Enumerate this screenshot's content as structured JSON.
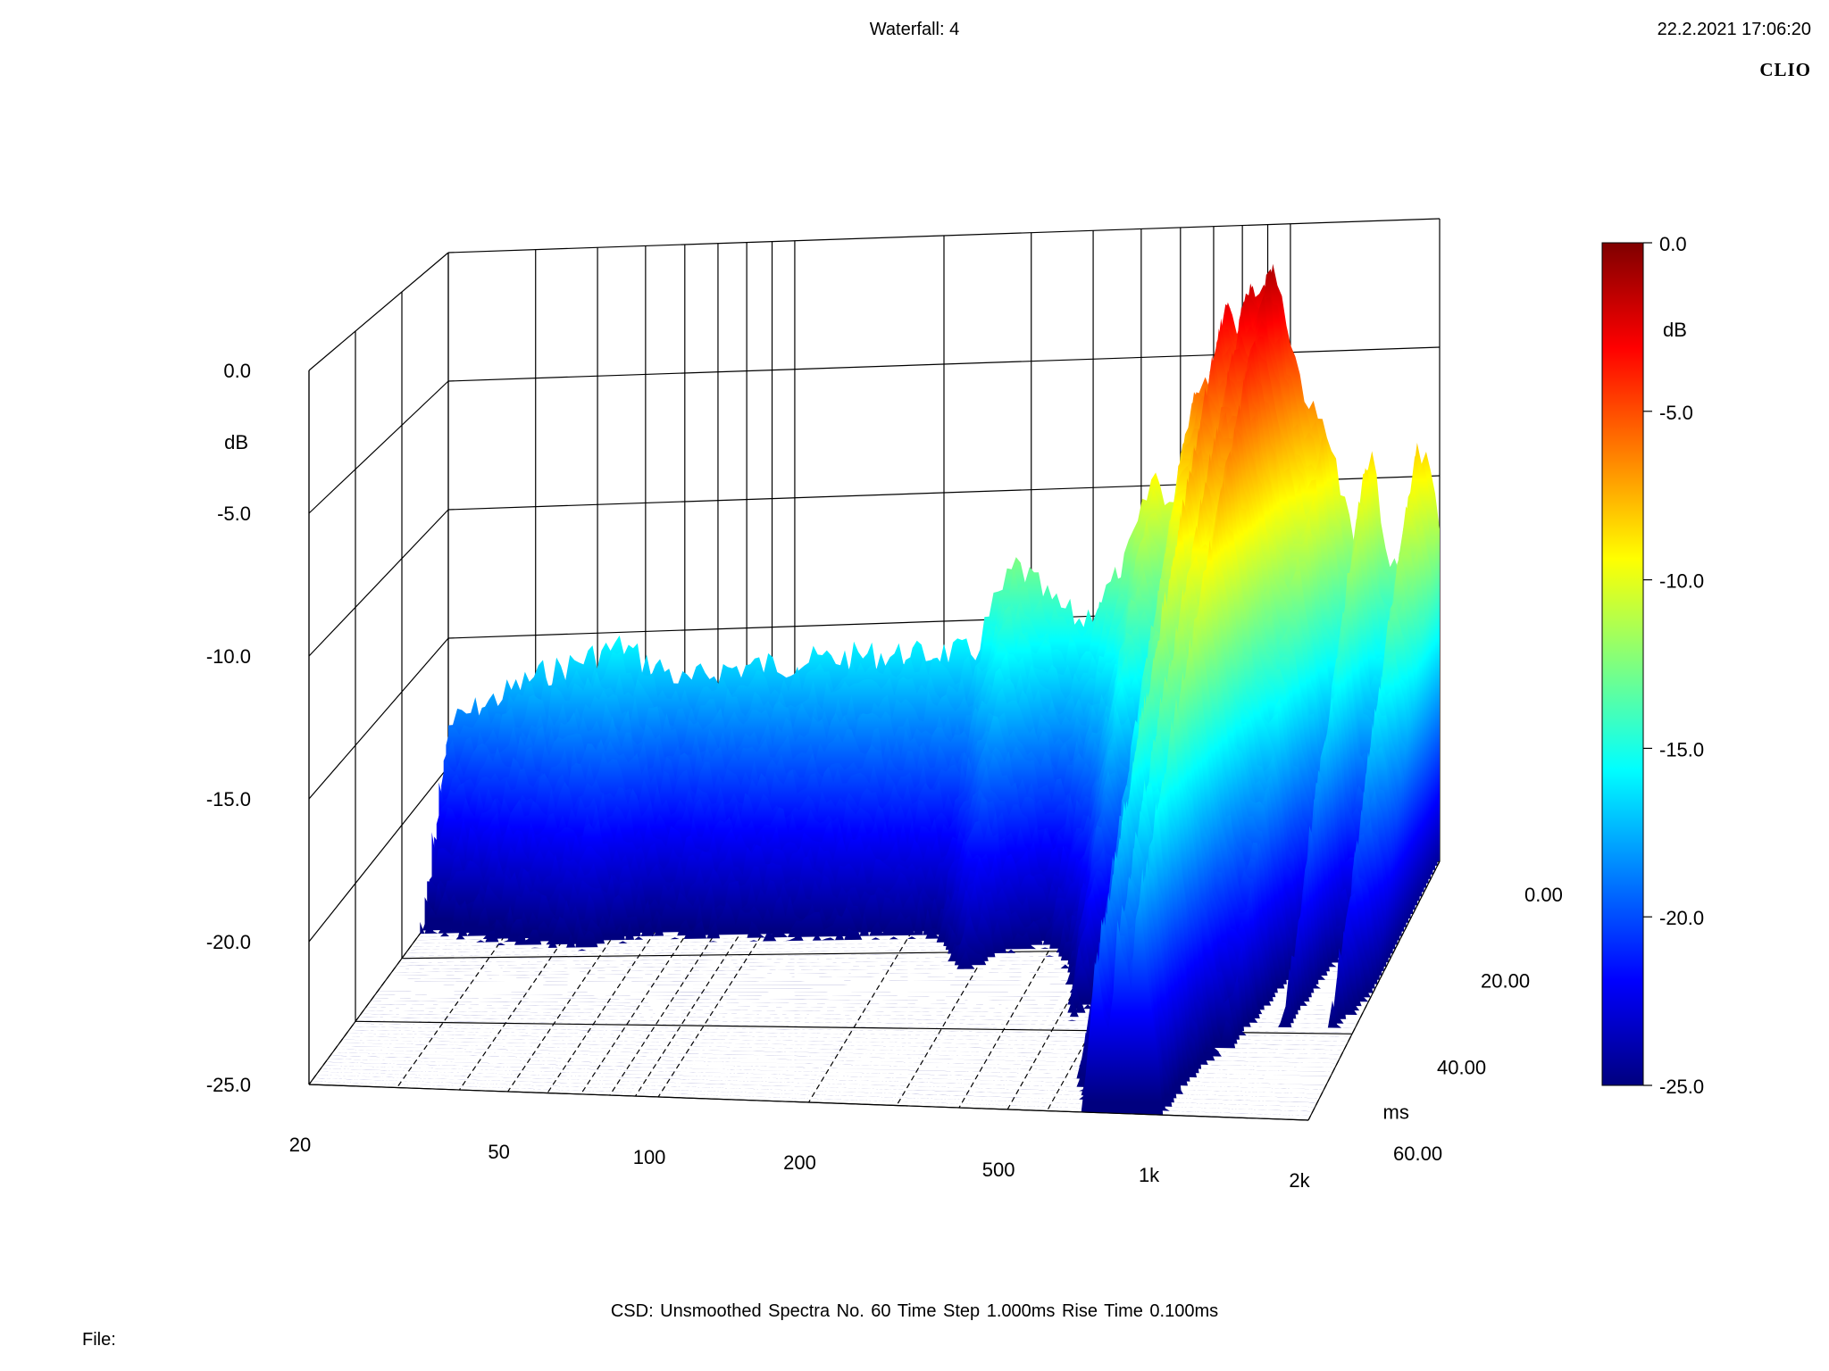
{
  "header": {
    "title": "Waterfall: 4",
    "timestamp": "22.2.2021 17:06:20",
    "brand": "CLIO"
  },
  "footer": {
    "settings": "CSD:   Unsmoothed   Spectra No. 60   Time Step 1.000ms   Rise Time 0.100ms",
    "file_label": "File:"
  },
  "colors": {
    "scale": [
      "#00007f",
      "#0000ff",
      "#007fff",
      "#00ffff",
      "#7fff7f",
      "#ffff00",
      "#ff7f00",
      "#ff0000",
      "#7f0000"
    ],
    "grid": "#000000"
  },
  "chart_data": {
    "type": "waterfall",
    "title": "Waterfall: 4",
    "frequency_axis": {
      "scale": "log",
      "range": [
        20,
        2000
      ],
      "ticks": [
        {
          "value": 20,
          "label": "20"
        },
        {
          "value": 50,
          "label": "50"
        },
        {
          "value": 100,
          "label": "100"
        },
        {
          "value": 200,
          "label": "200"
        },
        {
          "value": 500,
          "label": "500"
        },
        {
          "value": 1000,
          "label": "1k"
        },
        {
          "value": 2000,
          "label": "2k"
        }
      ]
    },
    "level_axis": {
      "unit": "dB",
      "range": [
        -25,
        0
      ],
      "ticks": [
        {
          "value": 0,
          "label": "0.0"
        },
        {
          "value": -5,
          "label": "-5.0"
        },
        {
          "value": -10,
          "label": "-10.0"
        },
        {
          "value": -15,
          "label": "-15.0"
        },
        {
          "value": -20,
          "label": "-20.0"
        },
        {
          "value": -25,
          "label": "-25.0"
        }
      ]
    },
    "time_axis": {
      "unit": "ms",
      "range": [
        0,
        60
      ],
      "ticks": [
        {
          "value": 0,
          "label": "0.00"
        },
        {
          "value": 20,
          "label": "20.00"
        },
        {
          "value": 40,
          "label": "40.00"
        },
        {
          "value": 60,
          "label": "60.00"
        }
      ]
    },
    "colorbar": {
      "unit": "dB",
      "range": [
        -25,
        0
      ],
      "ticks": [
        {
          "value": 0,
          "label": "0.0"
        },
        {
          "value": -5,
          "label": "-5.0"
        },
        {
          "value": -10,
          "label": "-10.0"
        },
        {
          "value": -15,
          "label": "-15.0"
        },
        {
          "value": -20,
          "label": "-20.0"
        },
        {
          "value": -25,
          "label": "-25.0"
        }
      ]
    },
    "front_spectrum_db": [
      [
        20,
        -17.8
      ],
      [
        25,
        -16.8
      ],
      [
        30,
        -16.0
      ],
      [
        35,
        -15.6
      ],
      [
        40,
        -15.2
      ],
      [
        45,
        -14.9
      ],
      [
        50,
        -15.6
      ],
      [
        55,
        -15.9
      ],
      [
        60,
        -16.5
      ],
      [
        70,
        -16.0
      ],
      [
        80,
        -15.9
      ],
      [
        100,
        -15.8
      ],
      [
        120,
        -15.7
      ],
      [
        150,
        -15.6
      ],
      [
        180,
        -15.7
      ],
      [
        200,
        -15.6
      ],
      [
        230,
        -15.7
      ],
      [
        250,
        -14.0
      ],
      [
        280,
        -12.3
      ],
      [
        300,
        -12.9
      ],
      [
        330,
        -13.8
      ],
      [
        380,
        -14.6
      ],
      [
        420,
        -13.6
      ],
      [
        460,
        -12.6
      ],
      [
        500,
        -10.6
      ],
      [
        530,
        -8.9
      ],
      [
        580,
        -10.3
      ],
      [
        640,
        -5.7
      ],
      [
        700,
        -5.0
      ],
      [
        750,
        -2.0
      ],
      [
        790,
        -3.5
      ],
      [
        830,
        -1.5
      ],
      [
        880,
        -2.4
      ],
      [
        920,
        -0.8
      ],
      [
        980,
        -3.0
      ],
      [
        1050,
        -5.5
      ],
      [
        1130,
        -7.2
      ],
      [
        1180,
        -7.0
      ],
      [
        1250,
        -9.5
      ],
      [
        1350,
        -12.0
      ],
      [
        1450,
        -7.8
      ],
      [
        1550,
        -12.5
      ],
      [
        1650,
        -13.0
      ],
      [
        1800,
        -8.2
      ],
      [
        1900,
        -9.0
      ],
      [
        2000,
        -11.0
      ]
    ],
    "decay_db_per_ms": 0.55
  }
}
